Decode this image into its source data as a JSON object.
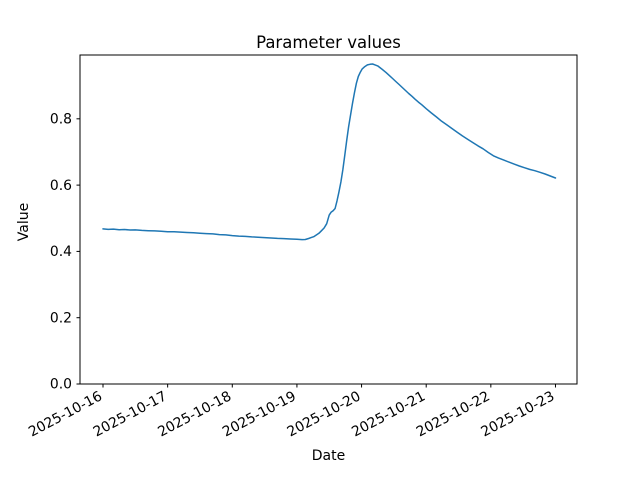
{
  "figure": {
    "background_color": "#ffffff"
  },
  "chart_data": {
    "type": "line",
    "title": "Parameter values",
    "xlabel": "Date",
    "ylabel": "Value",
    "grid": false,
    "legend": "none",
    "line_color": "#1f77b4",
    "axis_color": "#000000",
    "x_tick_labels": [
      "2025-10-16",
      "2025-10-17",
      "2025-10-18",
      "2025-10-19",
      "2025-10-20",
      "2025-10-21",
      "2025-10-22",
      "2025-10-23"
    ],
    "x_tick_days": [
      0,
      1,
      2,
      3,
      4,
      5,
      6,
      7
    ],
    "x_tick_rotation_deg": 28,
    "y_tick_labels": [
      "0.0",
      "0.2",
      "0.4",
      "0.6",
      "0.8"
    ],
    "y_ticks": [
      0.0,
      0.2,
      0.4,
      0.6,
      0.8
    ],
    "xlim_days": [
      -0.356,
      7.333
    ],
    "ylim": [
      0.0,
      0.9925
    ],
    "series": [
      {
        "name": "parameter-value",
        "x_unit": "days since 2025-10-16",
        "points": [
          [
            0.0,
            0.468
          ],
          [
            0.08,
            0.4665
          ],
          [
            0.16,
            0.4672
          ],
          [
            0.25,
            0.4655
          ],
          [
            0.33,
            0.466
          ],
          [
            0.42,
            0.4645
          ],
          [
            0.5,
            0.465
          ],
          [
            0.6,
            0.4635
          ],
          [
            0.7,
            0.4625
          ],
          [
            0.8,
            0.4618
          ],
          [
            0.9,
            0.4608
          ],
          [
            1.0,
            0.4595
          ],
          [
            1.1,
            0.459
          ],
          [
            1.2,
            0.4582
          ],
          [
            1.3,
            0.457
          ],
          [
            1.4,
            0.456
          ],
          [
            1.5,
            0.4548
          ],
          [
            1.6,
            0.4538
          ],
          [
            1.7,
            0.4528
          ],
          [
            1.8,
            0.4508
          ],
          [
            1.9,
            0.4498
          ],
          [
            2.0,
            0.4478
          ],
          [
            2.1,
            0.4462
          ],
          [
            2.2,
            0.4452
          ],
          [
            2.3,
            0.4438
          ],
          [
            2.4,
            0.4428
          ],
          [
            2.5,
            0.4415
          ],
          [
            2.6,
            0.4405
          ],
          [
            2.7,
            0.4392
          ],
          [
            2.8,
            0.4385
          ],
          [
            2.9,
            0.4375
          ],
          [
            3.0,
            0.4365
          ],
          [
            3.08,
            0.4355
          ],
          [
            3.13,
            0.4358
          ],
          [
            3.18,
            0.4388
          ],
          [
            3.22,
            0.4415
          ],
          [
            3.26,
            0.4445
          ],
          [
            3.3,
            0.4495
          ],
          [
            3.34,
            0.4545
          ],
          [
            3.38,
            0.4625
          ],
          [
            3.42,
            0.4705
          ],
          [
            3.46,
            0.4835
          ],
          [
            3.5,
            0.5095
          ],
          [
            3.53,
            0.5185
          ],
          [
            3.56,
            0.5225
          ],
          [
            3.59,
            0.5295
          ],
          [
            3.62,
            0.5525
          ],
          [
            3.65,
            0.5785
          ],
          [
            3.68,
            0.6095
          ],
          [
            3.71,
            0.6455
          ],
          [
            3.74,
            0.6905
          ],
          [
            3.77,
            0.7345
          ],
          [
            3.8,
            0.7755
          ],
          [
            3.83,
            0.8125
          ],
          [
            3.86,
            0.8465
          ],
          [
            3.89,
            0.8795
          ],
          [
            3.92,
            0.9075
          ],
          [
            3.95,
            0.9275
          ],
          [
            3.98,
            0.9405
          ],
          [
            4.01,
            0.9505
          ],
          [
            4.05,
            0.9575
          ],
          [
            4.09,
            0.9625
          ],
          [
            4.13,
            0.9645
          ],
          [
            4.17,
            0.9655
          ],
          [
            4.21,
            0.9625
          ],
          [
            4.25,
            0.9595
          ],
          [
            4.29,
            0.9535
          ],
          [
            4.33,
            0.9475
          ],
          [
            4.38,
            0.9395
          ],
          [
            4.43,
            0.9305
          ],
          [
            4.48,
            0.9215
          ],
          [
            4.53,
            0.9125
          ],
          [
            4.58,
            0.9035
          ],
          [
            4.63,
            0.8945
          ],
          [
            4.68,
            0.8855
          ],
          [
            4.73,
            0.8765
          ],
          [
            4.78,
            0.868
          ],
          [
            4.83,
            0.859
          ],
          [
            4.88,
            0.8505
          ],
          [
            4.93,
            0.8425
          ],
          [
            5.0,
            0.8305
          ],
          [
            5.08,
            0.8175
          ],
          [
            5.16,
            0.8055
          ],
          [
            5.24,
            0.7925
          ],
          [
            5.32,
            0.7815
          ],
          [
            5.4,
            0.7705
          ],
          [
            5.48,
            0.7595
          ],
          [
            5.56,
            0.7485
          ],
          [
            5.64,
            0.7385
          ],
          [
            5.72,
            0.7285
          ],
          [
            5.8,
            0.7185
          ],
          [
            5.88,
            0.7095
          ],
          [
            5.96,
            0.6985
          ],
          [
            6.04,
            0.6885
          ],
          [
            6.12,
            0.6815
          ],
          [
            6.2,
            0.6755
          ],
          [
            6.28,
            0.6695
          ],
          [
            6.36,
            0.6635
          ],
          [
            6.44,
            0.6575
          ],
          [
            6.52,
            0.6525
          ],
          [
            6.6,
            0.6475
          ],
          [
            6.68,
            0.6435
          ],
          [
            6.76,
            0.6385
          ],
          [
            6.84,
            0.6335
          ],
          [
            6.92,
            0.6275
          ],
          [
            7.0,
            0.6215
          ]
        ]
      }
    ]
  }
}
